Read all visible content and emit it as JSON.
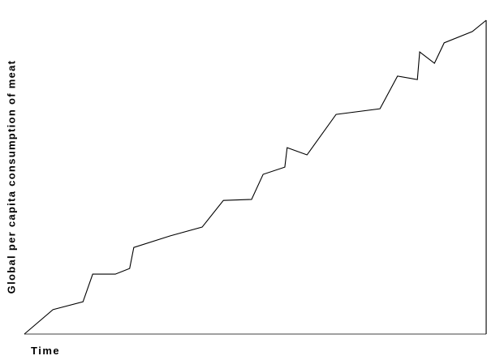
{
  "chart_data": {
    "type": "line",
    "title": "",
    "xlabel": "Time",
    "ylabel": "Global per capita consumption of meat",
    "xlim": [
      0,
      100
    ],
    "ylim": [
      0,
      100
    ],
    "grid": false,
    "ticks": false,
    "line_color": "#000000",
    "axis_color": "#808080",
    "series": [
      {
        "x": [
          0,
          6.2,
          12.7,
          14.8,
          19.7,
          22.8,
          23.7,
          31.6,
          38.5,
          43.1,
          49.2,
          51.7,
          56.4,
          56.9,
          61.2,
          67.5,
          77.0,
          80.8,
          85.1,
          85.6,
          88.8,
          90.9,
          97.0,
          100
        ],
        "y": [
          0,
          7.8,
          10.3,
          19.1,
          19.1,
          20.9,
          27.6,
          31.3,
          34.1,
          42.6,
          42.9,
          50.9,
          53.2,
          59.4,
          57.1,
          70.0,
          71.8,
          82.2,
          81.1,
          89.9,
          86.3,
          92.8,
          96.4,
          100
        ]
      }
    ]
  }
}
